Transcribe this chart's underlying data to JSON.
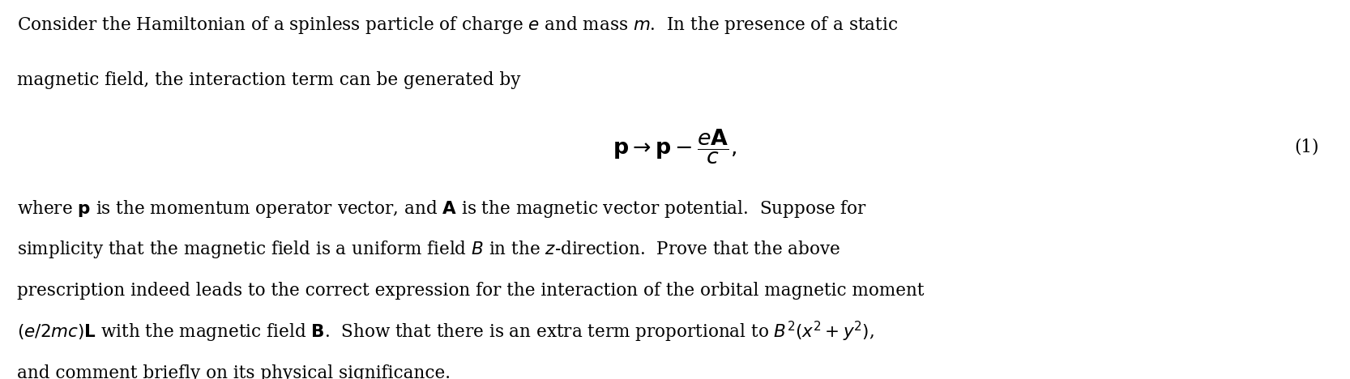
{
  "background_color": "#ffffff",
  "figsize": [
    16.66,
    4.68
  ],
  "dpi": 100,
  "text_color": "#000000",
  "font_size": 15.5,
  "line1": "Consider the Hamiltonian of a spinless particle of charge $e$ and mass $m$.  In the presence of a static",
  "line2": "magnetic field, the interaction term can be generated by",
  "equation": "$\\mathbf{p} \\rightarrow \\mathbf{p} - \\dfrac{e\\mathbf{A}}{c},$",
  "eq_number": "(1)",
  "line3": "where $\\mathbf{p}$ is the momentum operator vector, and $\\mathbf{A}$ is the magnetic vector potential.  Suppose for",
  "line4": "simplicity that the magnetic field is a uniform field $B$ in the $z$-direction.  Prove that the above",
  "line5": "prescription indeed leads to the correct expression for the interaction of the orbital magnetic moment",
  "line6": "$(e/2mc)\\mathbf{L}$ with the magnetic field $\\mathbf{B}$.  Show that there is an extra term proportional to $B^2(x^2 + y^2)$,",
  "line7": "and comment briefly on its physical significance."
}
